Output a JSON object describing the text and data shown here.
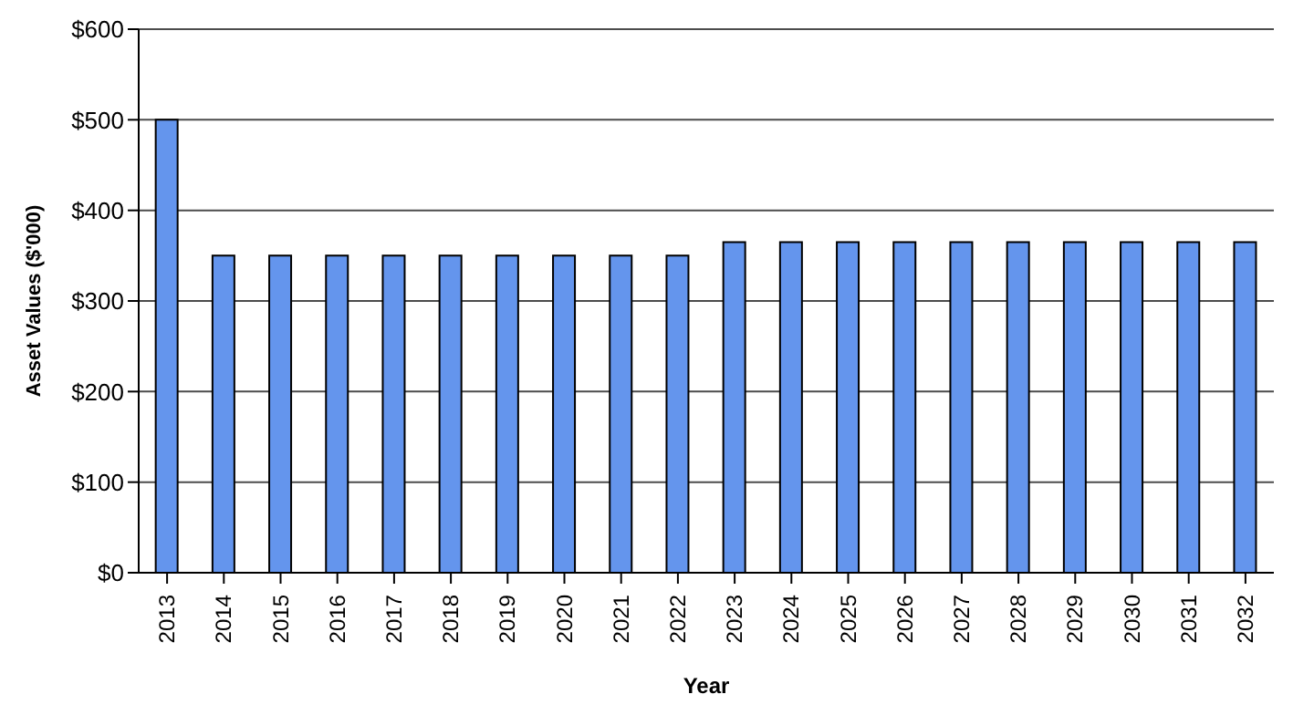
{
  "chart_data": {
    "type": "bar",
    "xlabel": "Year",
    "ylabel": "Asset Values ($'000)",
    "categories": [
      "2013",
      "2014",
      "2015",
      "2016",
      "2017",
      "2018",
      "2019",
      "2020",
      "2021",
      "2022",
      "2023",
      "2024",
      "2025",
      "2026",
      "2027",
      "2028",
      "2029",
      "2030",
      "2031",
      "2032"
    ],
    "series": [
      {
        "color": "#6495ed",
        "values": [
          500,
          350,
          350,
          350,
          350,
          350,
          350,
          350,
          350,
          350,
          365,
          365,
          365,
          365,
          365,
          365,
          365,
          365,
          365,
          365
        ]
      }
    ],
    "ylim": [
      0,
      600
    ],
    "yticks": [
      {
        "value": 0,
        "label": "$0"
      },
      {
        "value": 100,
        "label": "$100"
      },
      {
        "value": 200,
        "label": "$200"
      },
      {
        "value": 300,
        "label": "$300"
      },
      {
        "value": 400,
        "label": "$400"
      },
      {
        "value": 500,
        "label": "$500"
      },
      {
        "value": 600,
        "label": "$600"
      }
    ],
    "grid": "y"
  }
}
